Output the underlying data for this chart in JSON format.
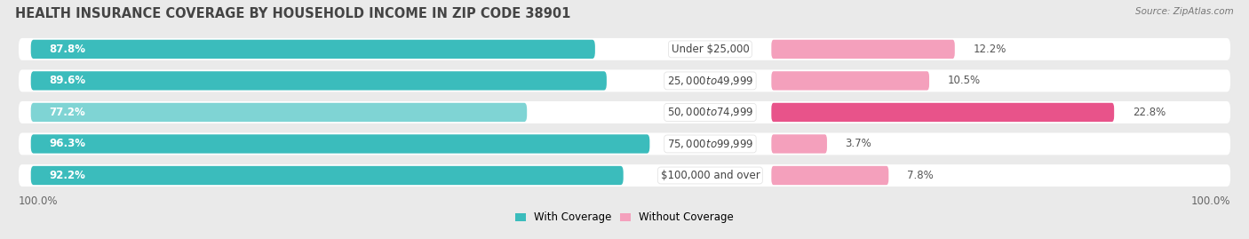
{
  "title": "HEALTH INSURANCE COVERAGE BY HOUSEHOLD INCOME IN ZIP CODE 38901",
  "source": "Source: ZipAtlas.com",
  "categories": [
    "Under $25,000",
    "$25,000 to $49,999",
    "$50,000 to $74,999",
    "$75,000 to $99,999",
    "$100,000 and over"
  ],
  "with_coverage": [
    87.8,
    89.6,
    77.2,
    96.3,
    92.2
  ],
  "without_coverage": [
    12.2,
    10.5,
    22.8,
    3.7,
    7.8
  ],
  "color_with": "#3BBCBC",
  "color_with_light": "#7FD4D4",
  "color_without_dark": "#E8538A",
  "color_without_light": "#F4A0BC",
  "bg_color": "#eaeaea",
  "legend_with": "With Coverage",
  "legend_without": "Without Coverage",
  "left_label": "100.0%",
  "right_label": "100.0%",
  "bar_height": 0.62,
  "title_fontsize": 10.5,
  "label_fontsize": 8.5,
  "tick_fontsize": 8.5,
  "without_coverage_dark_threshold": 15.0
}
